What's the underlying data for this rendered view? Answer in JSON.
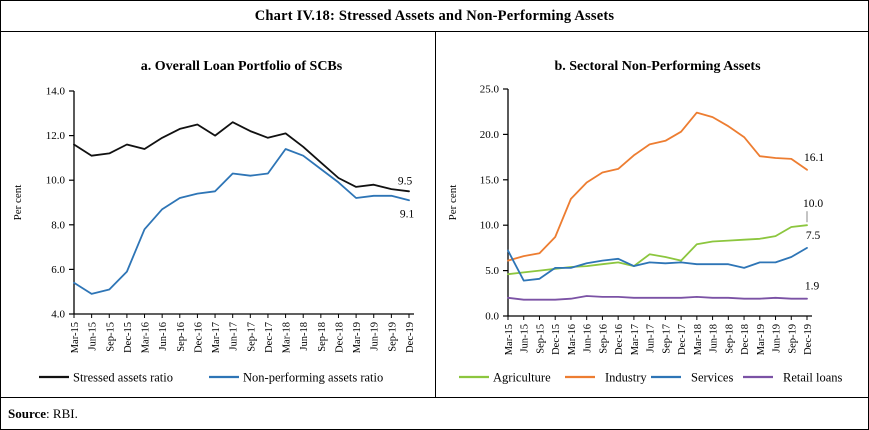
{
  "window": {
    "title": "Chart IV.18: Stressed Assets and Non-Performing Assets"
  },
  "source": {
    "label": "Source",
    "rest": ": RBI."
  },
  "chart_data": [
    {
      "id": "panel-a",
      "type": "line",
      "title": "a. Overall Loan Portfolio of SCBs",
      "ylabel": "Per cent",
      "ylim": [
        4.0,
        14.0
      ],
      "ytick_step": 2.0,
      "grid": false,
      "legend_position": "bottom",
      "categories": [
        "Mar-15",
        "Jun-15",
        "Sep-15",
        "Dec-15",
        "Mar-16",
        "Jun-16",
        "Sep-16",
        "Dec-16",
        "Mar-17",
        "Jun-17",
        "Sep-17",
        "Dec-17",
        "Mar-18",
        "Jun-18",
        "Sep-18",
        "Dec-18",
        "Mar-19",
        "Jun-19",
        "Sep-19",
        "Dec-19"
      ],
      "series": [
        {
          "name": "Stressed assets ratio",
          "color": "#111111",
          "values": [
            11.6,
            11.1,
            11.2,
            11.6,
            11.4,
            11.9,
            12.3,
            12.5,
            12.0,
            12.6,
            12.2,
            11.9,
            12.1,
            11.5,
            10.8,
            10.1,
            9.7,
            9.8,
            9.6,
            9.5
          ],
          "end_label": "9.5",
          "end_label_dx": -4,
          "end_label_dy": -7
        },
        {
          "name": "Non-performing assets ratio",
          "color": "#2E75B6",
          "values": [
            5.4,
            4.9,
            5.1,
            5.9,
            7.8,
            8.7,
            9.2,
            9.4,
            9.5,
            10.3,
            10.2,
            10.3,
            11.4,
            11.1,
            10.5,
            9.9,
            9.2,
            9.3,
            9.3,
            9.1
          ],
          "end_label": "9.1",
          "end_label_dx": -2,
          "end_label_dy": 17
        }
      ]
    },
    {
      "id": "panel-b",
      "type": "line",
      "title": "b. Sectoral Non-Performing Assets",
      "ylabel": "Per cent",
      "ylim": [
        0.0,
        25.0
      ],
      "ytick_step": 5.0,
      "grid": false,
      "legend_position": "bottom",
      "categories": [
        "Mar-15",
        "Jun-15",
        "Sep-15",
        "Dec-15",
        "Mar-16",
        "Jun-16",
        "Sep-16",
        "Dec-16",
        "Mar-17",
        "Jun-17",
        "Sep-17",
        "Dec-17",
        "Mar-18",
        "Jun-18",
        "Sep-18",
        "Dec-18",
        "Mar-19",
        "Jun-19",
        "Sep-19",
        "Dec-19"
      ],
      "series": [
        {
          "name": "Agriculture",
          "color": "#8CC63E",
          "values": [
            4.6,
            4.8,
            5.0,
            5.2,
            5.4,
            5.5,
            5.7,
            5.9,
            5.5,
            6.8,
            6.5,
            6.1,
            7.9,
            8.2,
            8.3,
            8.4,
            8.5,
            8.8,
            9.8,
            10.0
          ],
          "end_label": "10.0",
          "end_label_dx": 6,
          "end_label_dy": -18,
          "end_label_leader": true
        },
        {
          "name": "Industry",
          "color": "#ED7D31",
          "values": [
            6.1,
            6.6,
            6.9,
            8.7,
            12.9,
            14.7,
            15.8,
            16.2,
            17.7,
            18.9,
            19.3,
            20.3,
            22.4,
            21.9,
            20.9,
            19.7,
            17.6,
            17.4,
            17.3,
            16.1
          ],
          "end_label": "16.1",
          "end_label_dx": 7,
          "end_label_dy": -9
        },
        {
          "name": "Services",
          "color": "#2E75B6",
          "values": [
            7.2,
            3.9,
            4.1,
            5.3,
            5.3,
            5.8,
            6.1,
            6.3,
            5.5,
            5.9,
            5.8,
            5.9,
            5.7,
            5.7,
            5.7,
            5.3,
            5.9,
            5.9,
            6.5,
            7.5
          ],
          "end_label": "7.5",
          "end_label_dx": 6,
          "end_label_dy": -9
        },
        {
          "name": "Retail loans",
          "color": "#7B52A5",
          "values": [
            2.0,
            1.8,
            1.8,
            1.8,
            1.9,
            2.2,
            2.1,
            2.1,
            2.0,
            2.0,
            2.0,
            2.0,
            2.1,
            2.0,
            2.0,
            1.9,
            1.9,
            2.0,
            1.9,
            1.9
          ],
          "end_label": "1.9",
          "end_label_dx": 5,
          "end_label_dy": -9
        }
      ]
    }
  ]
}
